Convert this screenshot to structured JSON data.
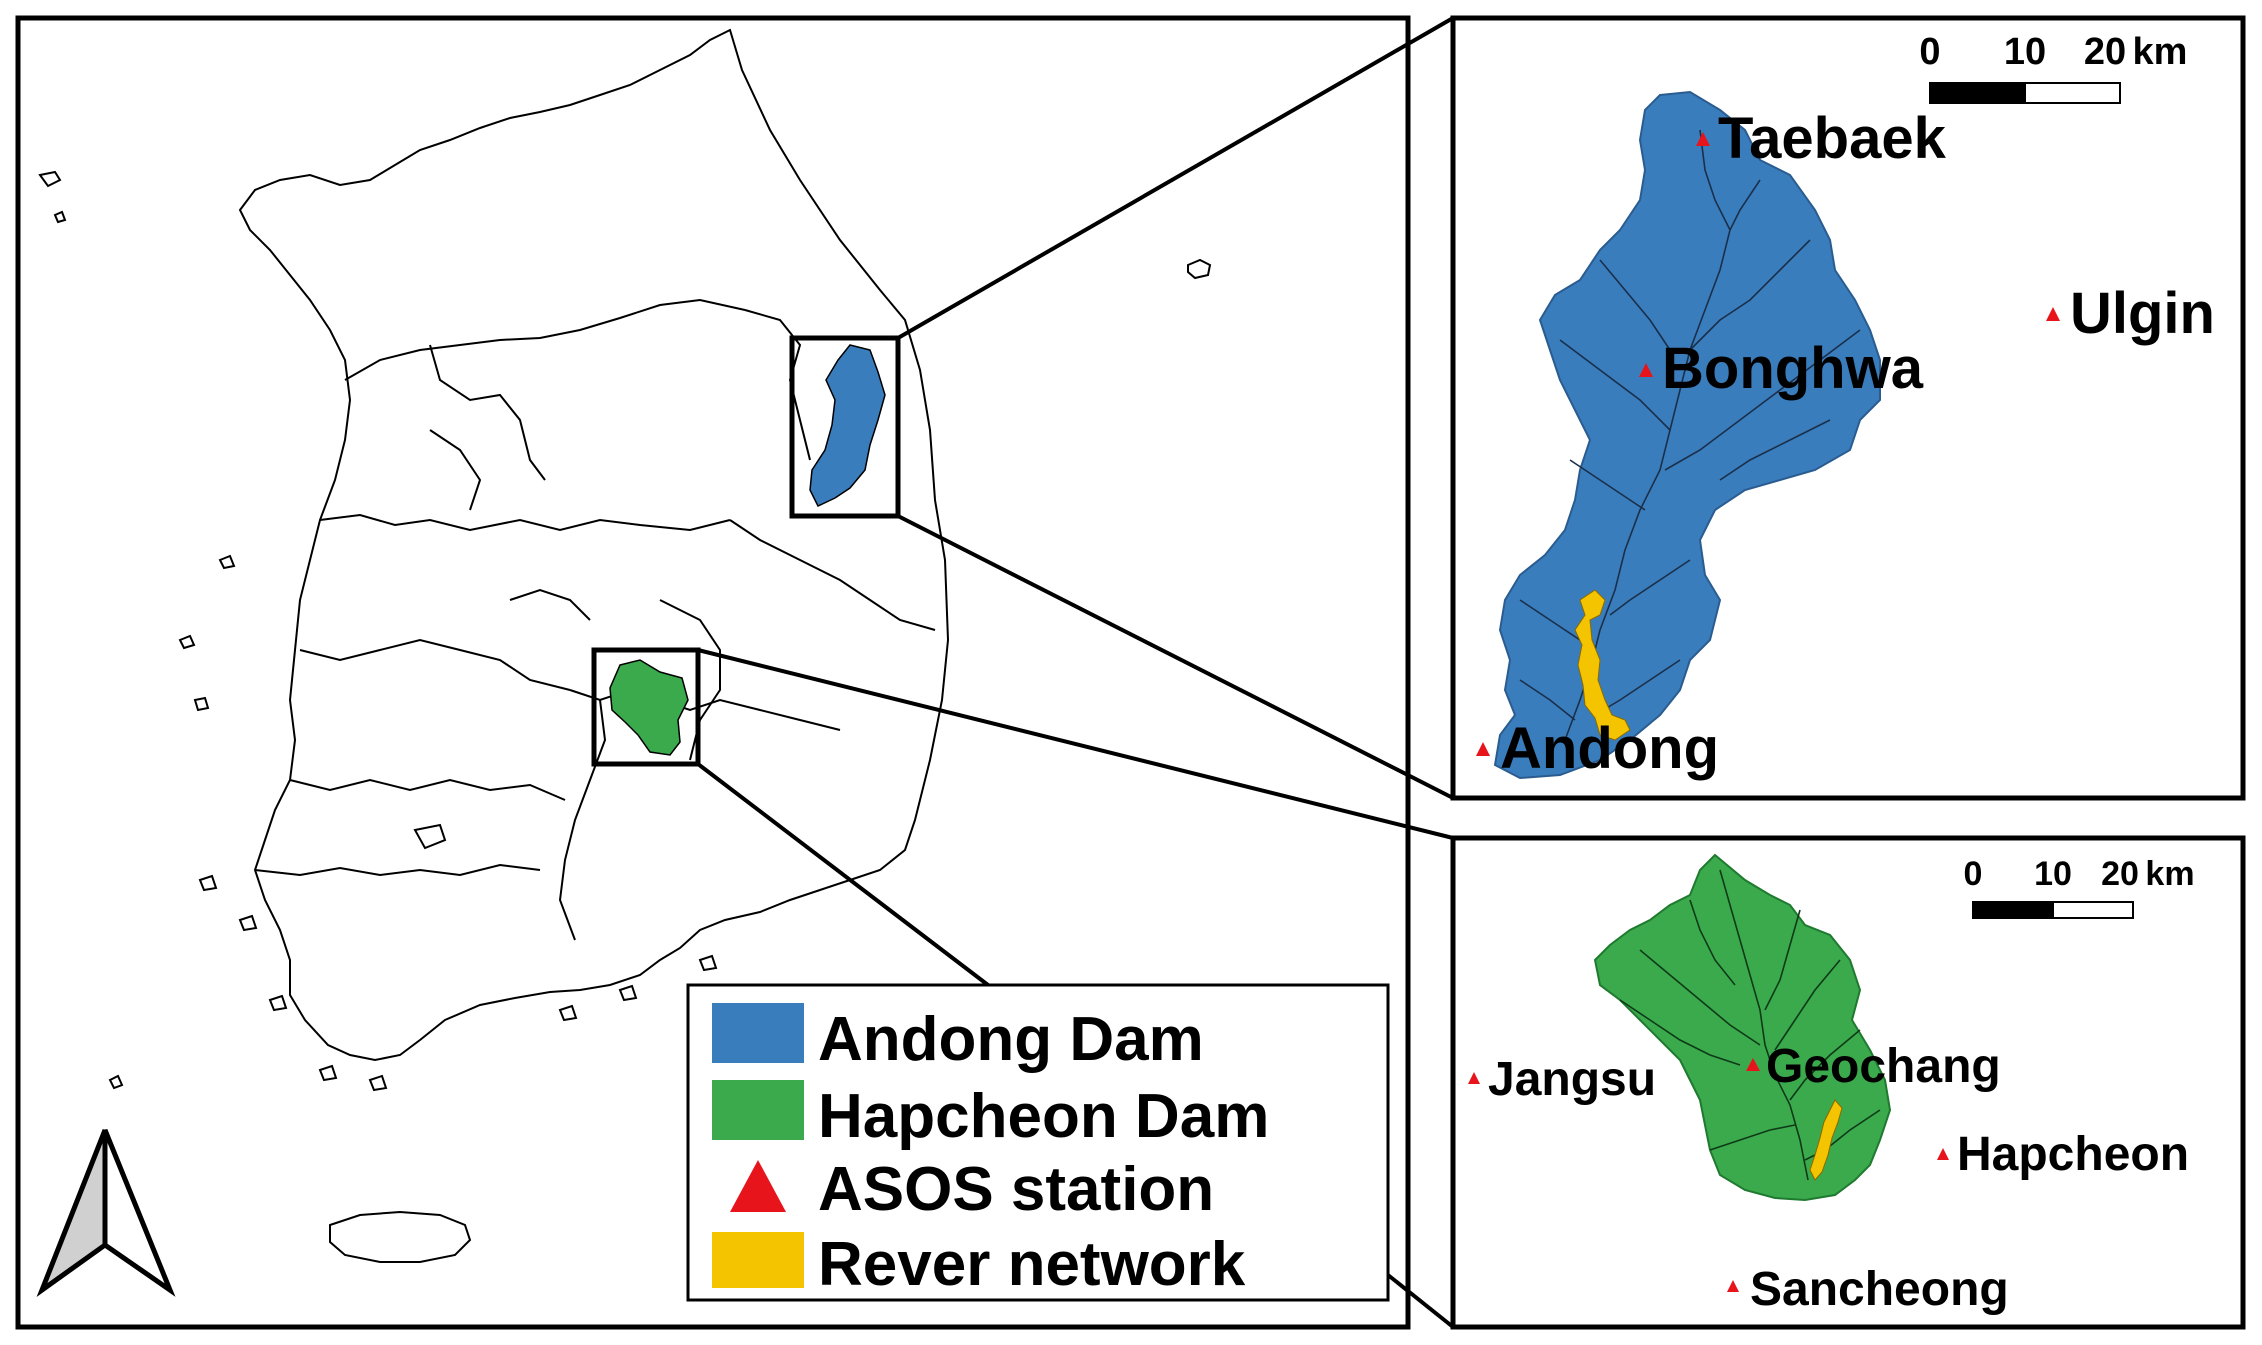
{
  "colors": {
    "andong_basin": "#3a7dbd",
    "hapcheon_basin": "#3aaa4c",
    "asos_marker": "#e8141c",
    "river_network": "#f5c400",
    "frame": "#000000"
  },
  "icons": [
    "north-arrow-icon",
    "triangle-icon"
  ],
  "legend": {
    "items": [
      {
        "label": "Andong Dam",
        "swatch": "andong_basin"
      },
      {
        "label": "Hapcheon Dam",
        "swatch": "hapcheon_basin"
      },
      {
        "label": "ASOS station",
        "swatch": "asos_marker"
      },
      {
        "label": "Rever network",
        "swatch": "river_network"
      }
    ]
  },
  "andong_inset": {
    "scale": {
      "ticks": [
        "0",
        "10",
        "20"
      ],
      "unit": "km"
    },
    "stations": [
      "Taebaek",
      "Ulgin",
      "Bonghwa",
      "Andong"
    ]
  },
  "hapcheon_inset": {
    "scale": {
      "ticks": [
        "0",
        "10",
        "20"
      ],
      "unit": "km"
    },
    "stations": [
      "Jangsu",
      "Geochang",
      "Hapcheon",
      "Sancheong"
    ]
  }
}
